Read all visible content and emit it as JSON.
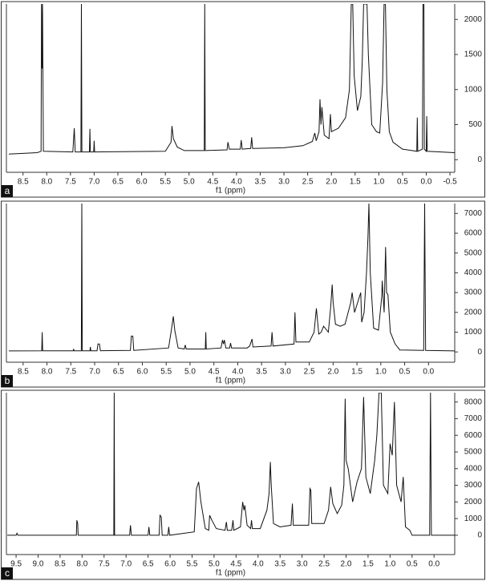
{
  "chart_data": [
    {
      "type": "line",
      "panel_label": "a",
      "xlabel": "f1 (ppm)",
      "color": "#111111",
      "xlim": [
        8.85,
        -0.6
      ],
      "ylim": [
        -180,
        2220
      ],
      "xticks": [
        8.5,
        {
          "value": 8,
          "label": "8.0"
        },
        7.5,
        {
          "value": 7,
          "label": "7.0"
        },
        6.5,
        {
          "value": 6,
          "label": "6.0"
        },
        5.5,
        {
          "value": 5,
          "label": "5.0"
        },
        4.5,
        {
          "value": 4,
          "label": "4.0"
        },
        3.5,
        {
          "value": 3,
          "label": "3.0"
        },
        2.5,
        {
          "value": 2,
          "label": "2.0"
        },
        1.5,
        {
          "value": 1,
          "label": "1.0"
        },
        0.5,
        {
          "value": 0,
          "label": "0.0"
        },
        -0.5
      ],
      "yticks": [
        0,
        500,
        1000,
        1500,
        2000
      ],
      "x": [
        8.8,
        8.2,
        8.12,
        8.11,
        8.1,
        8.09,
        8.07,
        7.45,
        7.42,
        7.4,
        7.28,
        7.27,
        7.26,
        7.1,
        7.09,
        7.08,
        7.01,
        7.0,
        6.99,
        5.5,
        5.38,
        5.36,
        5.33,
        5.25,
        5.1,
        4.68,
        4.67,
        4.66,
        4.2,
        4.18,
        4.15,
        3.92,
        3.9,
        3.88,
        3.7,
        3.68,
        3.66,
        3.0,
        2.6,
        2.4,
        2.35,
        2.32,
        2.26,
        2.24,
        2.22,
        2.2,
        2.15,
        2.05,
        2.02,
        2.0,
        1.85,
        1.7,
        1.62,
        1.58,
        1.55,
        1.52,
        1.45,
        1.38,
        1.35,
        1.32,
        1.3,
        1.25,
        1.22,
        1.15,
        1.05,
        0.98,
        0.92,
        0.89,
        0.86,
        0.83,
        0.78,
        0.7,
        0.5,
        0.2,
        0.19,
        0.18,
        0.08,
        0.07,
        0.05,
        0.04,
        0.0,
        -0.01,
        -0.02,
        -0.6
      ],
      "values": [
        80,
        100,
        120,
        2220,
        1300,
        2220,
        120,
        110,
        450,
        110,
        110,
        2220,
        110,
        110,
        440,
        110,
        110,
        270,
        110,
        120,
        250,
        480,
        300,
        180,
        130,
        130,
        2220,
        130,
        140,
        250,
        150,
        150,
        280,
        150,
        160,
        320,
        160,
        170,
        200,
        260,
        380,
        270,
        400,
        860,
        500,
        750,
        350,
        300,
        650,
        400,
        450,
        600,
        1000,
        2220,
        2220,
        1200,
        700,
        900,
        1400,
        2220,
        2220,
        2220,
        1500,
        500,
        400,
        380,
        1100,
        2220,
        2220,
        1000,
        400,
        250,
        150,
        120,
        600,
        120,
        150,
        2220,
        2220,
        150,
        120,
        620,
        120,
        100
      ]
    },
    {
      "type": "line",
      "panel_label": "b",
      "xlabel": "f1 (ppm)",
      "color": "#111111",
      "xlim": [
        8.85,
        -0.55
      ],
      "ylim": [
        -520,
        7500
      ],
      "xticks": [
        8.5,
        {
          "value": 8,
          "label": "8.0"
        },
        7.5,
        {
          "value": 7,
          "label": "7.0"
        },
        6.5,
        {
          "value": 6,
          "label": "6.0"
        },
        5.5,
        {
          "value": 5,
          "label": "5.0"
        },
        4.5,
        {
          "value": 4,
          "label": "4.0"
        },
        3.5,
        {
          "value": 3,
          "label": "3.0"
        },
        2.5,
        {
          "value": 2,
          "label": "2.0"
        },
        1.5,
        {
          "value": 1,
          "label": "1.0"
        },
        0.5,
        {
          "value": 0,
          "label": "0.0"
        }
      ],
      "yticks": [
        0,
        1000,
        2000,
        3000,
        4000,
        5000,
        6000,
        7000
      ],
      "x": [
        8.8,
        8.11,
        8.1,
        8.09,
        7.45,
        7.44,
        7.43,
        7.28,
        7.27,
        7.26,
        7.1,
        7.09,
        7.08,
        6.95,
        6.93,
        6.9,
        6.88,
        6.25,
        6.23,
        6.2,
        6.18,
        5.45,
        5.38,
        5.35,
        5.32,
        5.25,
        5.12,
        5.1,
        5.08,
        4.68,
        4.67,
        4.66,
        4.35,
        4.32,
        4.3,
        4.28,
        4.25,
        4.17,
        4.15,
        4.13,
        3.8,
        3.75,
        3.7,
        3.68,
        3.3,
        3.28,
        3.26,
        2.82,
        2.8,
        2.78,
        2.5,
        2.4,
        2.35,
        2.3,
        2.25,
        2.2,
        2.1,
        2.05,
        2.02,
        2.0,
        1.95,
        1.85,
        1.75,
        1.63,
        1.6,
        1.55,
        1.42,
        1.4,
        1.35,
        1.3,
        1.27,
        1.25,
        1.22,
        1.15,
        1.05,
        0.98,
        0.97,
        0.93,
        0.9,
        0.88,
        0.85,
        0.8,
        0.7,
        0.6,
        0.1,
        0.08,
        0.06,
        -0.55
      ],
      "values": [
        50,
        60,
        1000,
        60,
        60,
        150,
        60,
        60,
        7500,
        60,
        60,
        250,
        60,
        60,
        400,
        400,
        60,
        80,
        800,
        800,
        80,
        200,
        1300,
        1800,
        1100,
        200,
        150,
        350,
        150,
        150,
        1000,
        150,
        200,
        600,
        400,
        600,
        200,
        200,
        450,
        200,
        200,
        300,
        650,
        250,
        300,
        1000,
        300,
        400,
        2000,
        500,
        500,
        1000,
        2200,
        900,
        1000,
        1300,
        1000,
        2300,
        3400,
        2500,
        1400,
        1300,
        1400,
        2500,
        3000,
        2000,
        3000,
        1500,
        2000,
        4000,
        5800,
        7500,
        4000,
        1200,
        1100,
        2800,
        3600,
        2000,
        5300,
        3000,
        2900,
        1000,
        400,
        100,
        80,
        7500,
        80,
        50
      ]
    },
    {
      "type": "line",
      "panel_label": "c",
      "xlabel": "f1 (ppm)",
      "color": "#111111",
      "xlim": [
        9.72,
        -0.47
      ],
      "ylim": [
        -1160,
        8560
      ],
      "xticks": [
        9.5,
        {
          "value": 9,
          "label": "9.0"
        },
        8.5,
        {
          "value": 8,
          "label": "8.0"
        },
        7.5,
        {
          "value": 7,
          "label": "7.0"
        },
        6.5,
        {
          "value": 6,
          "label": "6.0"
        },
        5.5,
        {
          "value": 5,
          "label": "5.0"
        },
        4.5,
        {
          "value": 4,
          "label": "4.0"
        },
        3.5,
        {
          "value": 3,
          "label": "3.0"
        },
        2.5,
        {
          "value": 2,
          "label": "2.0"
        },
        1.5,
        {
          "value": 1,
          "label": "1.0"
        },
        0.5,
        {
          "value": 0,
          "label": "0.0"
        }
      ],
      "yticks": [
        0,
        1000,
        2000,
        3000,
        4000,
        5000,
        6000,
        7000,
        8000
      ],
      "x": [
        9.7,
        9.5,
        9.48,
        9.46,
        8.13,
        8.12,
        8.1,
        8.09,
        7.28,
        7.27,
        7.26,
        6.92,
        6.9,
        6.88,
        6.5,
        6.48,
        6.46,
        6.25,
        6.23,
        6.2,
        6.18,
        6.05,
        6.03,
        6.01,
        5.45,
        5.4,
        5.35,
        5.3,
        5.2,
        5.12,
        5.1,
        5.05,
        4.95,
        4.75,
        4.72,
        4.7,
        4.6,
        4.57,
        4.55,
        4.4,
        4.35,
        4.32,
        4.3,
        4.25,
        4.17,
        4.15,
        4.13,
        3.95,
        3.8,
        3.75,
        3.72,
        3.7,
        3.65,
        3.5,
        3.25,
        3.22,
        3.2,
        2.85,
        2.82,
        2.8,
        2.78,
        2.5,
        2.4,
        2.35,
        2.3,
        2.2,
        2.1,
        2.05,
        2.02,
        2.0,
        1.95,
        1.85,
        1.75,
        1.65,
        1.6,
        1.55,
        1.45,
        1.35,
        1.3,
        1.25,
        1.2,
        1.15,
        1.05,
        1.0,
        0.95,
        0.9,
        0.85,
        0.8,
        0.75,
        0.7,
        0.65,
        0.55,
        0.5,
        0.1,
        0.08,
        0.06,
        -0.47
      ],
      "values": [
        0,
        0,
        120,
        0,
        0,
        900,
        700,
        0,
        0,
        8560,
        0,
        0,
        600,
        0,
        0,
        500,
        0,
        0,
        1200,
        1100,
        0,
        0,
        500,
        0,
        200,
        2800,
        3200,
        2000,
        400,
        300,
        1200,
        900,
        400,
        300,
        800,
        300,
        300,
        900,
        300,
        500,
        2000,
        1500,
        1800,
        600,
        400,
        900,
        400,
        400,
        1500,
        2500,
        4400,
        3000,
        700,
        500,
        600,
        1900,
        600,
        600,
        2800,
        2700,
        700,
        700,
        1500,
        2900,
        1900,
        1300,
        1800,
        3000,
        8200,
        4500,
        4000,
        2000,
        3200,
        4000,
        8300,
        3500,
        2500,
        4500,
        6000,
        8560,
        8560,
        3000,
        2500,
        5500,
        4800,
        8000,
        3000,
        2500,
        2000,
        3500,
        500,
        300,
        0,
        0,
        8560,
        0,
        0
      ]
    }
  ]
}
